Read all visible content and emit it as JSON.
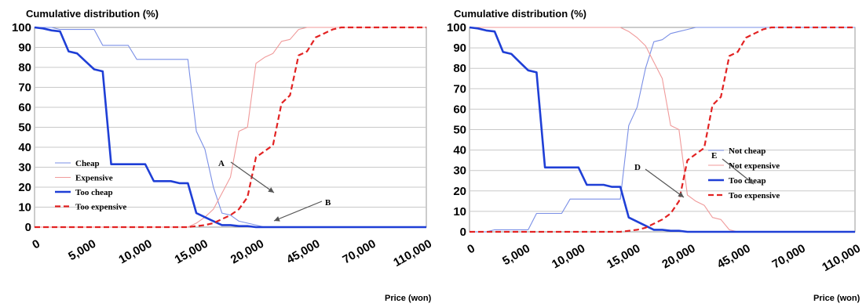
{
  "colors": {
    "cheap": "#7a8fe6",
    "expensive": "#f09a9a",
    "too_cheap": "#1f3fd6",
    "too_expensive": "#e22222",
    "grid": "#c8c8c8",
    "frame": "#9a9a9a"
  },
  "chart_data": [
    {
      "type": "line",
      "title": "Cumulative distribution (%)",
      "xlabel": "Price (won)",
      "ylabel": "",
      "ylim": [
        0,
        100
      ],
      "yticks": [
        "0",
        "10",
        "20",
        "30",
        "40",
        "50",
        "60",
        "70",
        "80",
        "90",
        "100"
      ],
      "xticks": [
        "0",
        "5,000",
        "10,000",
        "15,000",
        "20,000",
        "45,000",
        "70,000",
        "110,000"
      ],
      "grid": true,
      "legend_position": "bottom-left",
      "annotations": [
        "A",
        "B"
      ],
      "series": [
        {
          "name": "Cheap",
          "style": "solid-thin",
          "color_key": "cheap",
          "values": [
            100,
            100,
            100,
            99,
            99,
            99,
            99,
            99,
            91,
            91,
            91,
            91,
            84,
            84,
            84,
            84,
            84,
            84,
            84,
            48,
            39,
            20,
            7,
            6,
            3,
            2,
            1,
            0,
            0,
            0,
            0,
            0,
            0,
            0,
            0,
            0,
            0,
            0,
            0,
            0,
            0,
            0,
            0,
            0,
            0,
            0,
            0
          ]
        },
        {
          "name": "Expensive",
          "style": "solid-thin",
          "color_key": "expensive",
          "values": [
            0,
            0,
            0,
            0,
            0,
            0,
            0,
            0,
            0,
            0,
            0,
            0,
            0,
            0,
            0,
            0,
            0,
            0,
            0,
            2,
            5,
            9,
            17,
            25,
            48,
            50,
            82,
            85,
            87,
            93,
            94,
            99,
            100,
            100,
            100,
            100,
            100,
            100,
            100,
            100,
            100,
            100,
            100,
            100,
            100,
            100,
            100
          ]
        },
        {
          "name": "Too cheap",
          "style": "solid-thick",
          "color_key": "too_cheap",
          "values": [
            100,
            99.5,
            98.5,
            98,
            88,
            87,
            83,
            79,
            78,
            31.5,
            31.5,
            31.5,
            31.5,
            31.5,
            23,
            23,
            23,
            22,
            22,
            7,
            5,
            3,
            1,
            1,
            0.5,
            0.5,
            0,
            0,
            0,
            0,
            0,
            0,
            0,
            0,
            0,
            0,
            0,
            0,
            0,
            0,
            0,
            0,
            0,
            0,
            0,
            0,
            0
          ]
        },
        {
          "name": "Too expensive",
          "style": "dashed",
          "color_key": "too_expensive",
          "values": [
            0,
            0,
            0,
            0,
            0,
            0,
            0,
            0,
            0,
            0,
            0,
            0,
            0,
            0,
            0,
            0,
            0,
            0,
            0,
            0.5,
            1,
            2,
            4,
            6,
            9,
            15,
            35,
            38,
            41,
            62,
            66,
            86,
            88,
            95,
            97,
            99,
            100,
            100,
            100,
            100,
            100,
            100,
            100,
            100,
            100,
            100,
            100
          ]
        }
      ]
    },
    {
      "type": "line",
      "title": "Cumulative distribution (%)",
      "xlabel": "Price (won)",
      "ylabel": "",
      "ylim": [
        0,
        100
      ],
      "yticks": [
        "0",
        "10",
        "20",
        "30",
        "40",
        "50",
        "60",
        "70",
        "80",
        "90",
        "100"
      ],
      "xticks": [
        "0",
        "5,000",
        "10,000",
        "15,000",
        "20,000",
        "45,000",
        "70,000",
        "110,000"
      ],
      "grid": true,
      "legend_position": "bottom-right",
      "annotations": [
        "D",
        "E"
      ],
      "series": [
        {
          "name": "Not cheap",
          "style": "solid-thin",
          "color_key": "cheap",
          "values": [
            0,
            0,
            0,
            1,
            1,
            1,
            1,
            1,
            9,
            9,
            9,
            9,
            16,
            16,
            16,
            16,
            16,
            16,
            16,
            52,
            61,
            80,
            93,
            94,
            97,
            98,
            99,
            100,
            100,
            100,
            100,
            100,
            100,
            100,
            100,
            100,
            100,
            100,
            100,
            100,
            100,
            100,
            100,
            100,
            100,
            100,
            100
          ]
        },
        {
          "name": "Not expensive",
          "style": "solid-thin",
          "color_key": "expensive",
          "values": [
            100,
            100,
            100,
            100,
            100,
            100,
            100,
            100,
            100,
            100,
            100,
            100,
            100,
            100,
            100,
            100,
            100,
            100,
            100,
            98,
            95,
            91,
            83,
            75,
            52,
            50,
            18,
            15,
            13,
            7,
            6,
            1,
            0,
            0,
            0,
            0,
            0,
            0,
            0,
            0,
            0,
            0,
            0,
            0,
            0,
            0,
            0
          ]
        },
        {
          "name": "Too cheap",
          "style": "solid-thick",
          "color_key": "too_cheap",
          "values": [
            100,
            99.5,
            98.5,
            98,
            88,
            87,
            83,
            79,
            78,
            31.5,
            31.5,
            31.5,
            31.5,
            31.5,
            23,
            23,
            23,
            22,
            22,
            7,
            5,
            3,
            1,
            1,
            0.5,
            0.5,
            0,
            0,
            0,
            0,
            0,
            0,
            0,
            0,
            0,
            0,
            0,
            0,
            0,
            0,
            0,
            0,
            0,
            0,
            0,
            0,
            0
          ]
        },
        {
          "name": "Too expensive",
          "style": "dashed",
          "color_key": "too_expensive",
          "values": [
            0,
            0,
            0,
            0,
            0,
            0,
            0,
            0,
            0,
            0,
            0,
            0,
            0,
            0,
            0,
            0,
            0,
            0,
            0,
            0.5,
            1,
            2,
            4,
            6,
            9,
            15,
            35,
            38,
            41,
            62,
            66,
            86,
            88,
            95,
            97,
            99,
            100,
            100,
            100,
            100,
            100,
            100,
            100,
            100,
            100,
            100,
            100
          ]
        }
      ]
    }
  ]
}
